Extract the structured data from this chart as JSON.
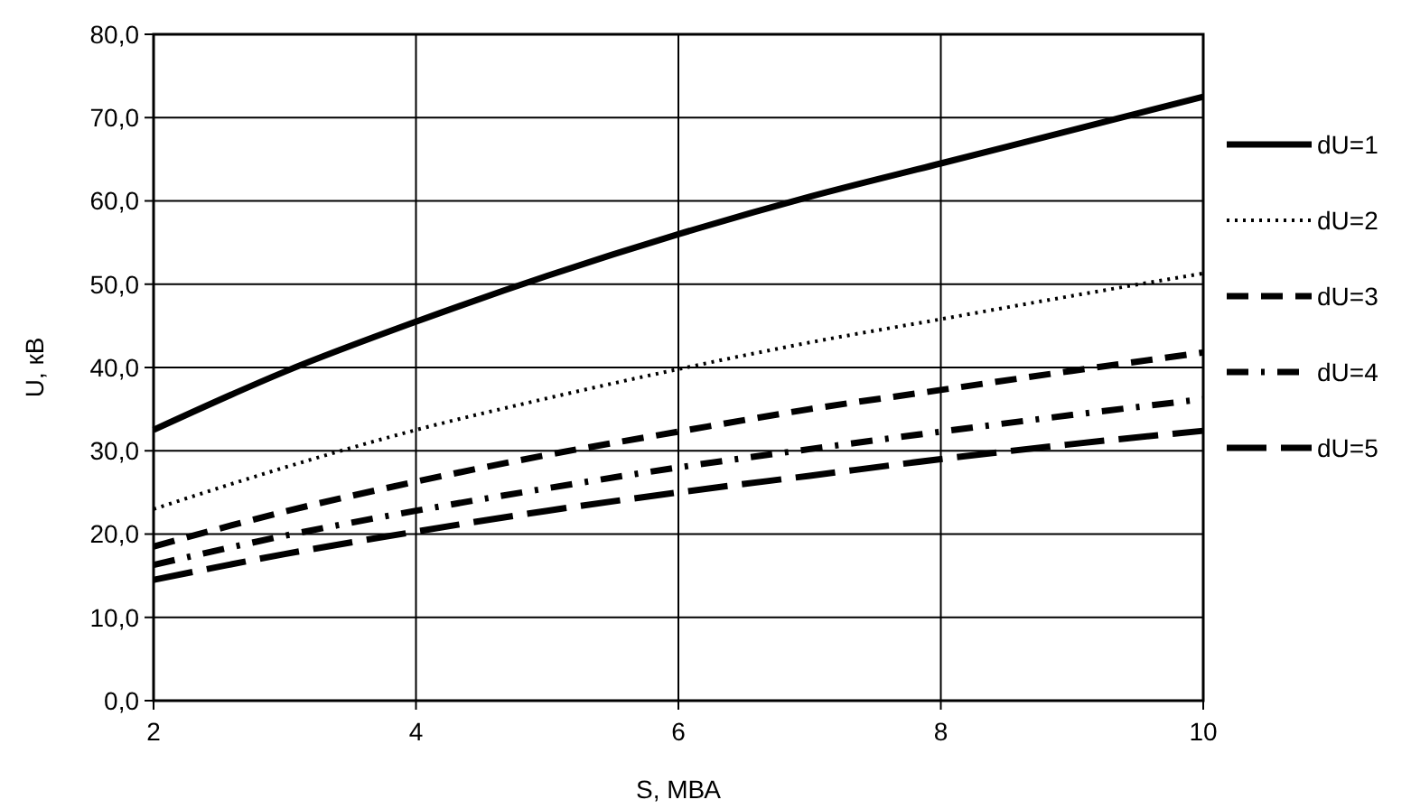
{
  "chart_data": {
    "type": "line",
    "xlabel": "S, МВА",
    "ylabel": "U, кВ",
    "x": [
      2,
      3,
      4,
      5,
      6,
      7,
      8,
      9,
      10
    ],
    "xlim": [
      2,
      10
    ],
    "xticks": [
      2,
      4,
      6,
      8,
      10
    ],
    "ylim": [
      0,
      80
    ],
    "yticks": [
      {
        "value": 0,
        "label": "0,0"
      },
      {
        "value": 10,
        "label": "10,0"
      },
      {
        "value": 20,
        "label": "20,0"
      },
      {
        "value": 30,
        "label": "30,0"
      },
      {
        "value": 40,
        "label": "40,0"
      },
      {
        "value": 50,
        "label": "50,0"
      },
      {
        "value": 60,
        "label": "60,0"
      },
      {
        "value": 70,
        "label": "70,0"
      },
      {
        "value": 80,
        "label": "80,0"
      }
    ],
    "grid": true,
    "legend": "right",
    "marker": "none",
    "series": [
      {
        "name": "dU=1",
        "color": "#000000",
        "line_style": "solid",
        "values": [
          32.5,
          39.5,
          45.5,
          51,
          56,
          60.5,
          64.5,
          68.5,
          72.5
        ]
      },
      {
        "name": "dU=2",
        "color": "#000000",
        "line_style": "dotted",
        "values": [
          23,
          28,
          32.5,
          36.3,
          39.8,
          43,
          45.8,
          48.6,
          51.3
        ]
      },
      {
        "name": "dU=3",
        "color": "#000000",
        "line_style": "dashed",
        "values": [
          18.5,
          22.7,
          26.3,
          29.5,
          32.3,
          35,
          37.3,
          39.6,
          41.8
        ]
      },
      {
        "name": "dU=4",
        "color": "#000000",
        "line_style": "dashdot",
        "values": [
          16.3,
          19.8,
          22.8,
          25.5,
          28,
          30.2,
          32.3,
          34.3,
          36.2
        ]
      },
      {
        "name": "dU=5",
        "color": "#000000",
        "line_style": "longdash",
        "values": [
          14.5,
          17.6,
          20.3,
          22.8,
          25,
          27,
          29,
          30.8,
          32.4
        ]
      }
    ]
  }
}
